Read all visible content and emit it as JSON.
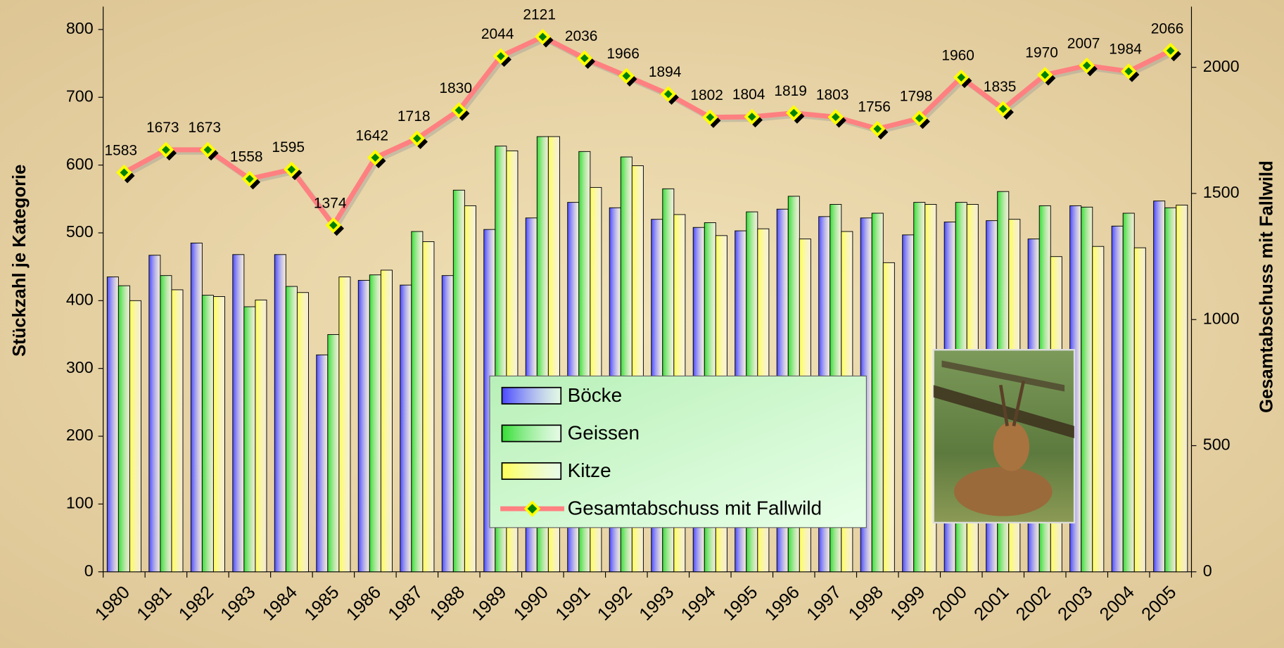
{
  "chart_data": {
    "type": "bar",
    "categories": [
      "1980",
      "1981",
      "1982",
      "1983",
      "1984",
      "1985",
      "1986",
      "1987",
      "1988",
      "1989",
      "1990",
      "1991",
      "1992",
      "1993",
      "1994",
      "1995",
      "1996",
      "1997",
      "1998",
      "1999",
      "2000",
      "2001",
      "2002",
      "2003",
      "2004",
      "2005"
    ],
    "y_label": "Stückzahl je Kategorie",
    "y2_label": "Gesamtabschuss mit Fallwild",
    "ylim": [
      0,
      800
    ],
    "yticks": [
      0,
      100,
      200,
      300,
      400,
      500,
      600,
      700,
      800
    ],
    "y2lim": [
      0,
      2150
    ],
    "y2ticks": [
      0,
      500,
      1000,
      1500,
      2000
    ],
    "series": [
      {
        "name": "Böcke",
        "color": "#4848ff",
        "values": [
          435,
          467,
          485,
          468,
          468,
          320,
          430,
          423,
          437,
          505,
          522,
          545,
          537,
          520,
          508,
          503,
          535,
          524,
          522,
          497,
          516,
          518,
          491,
          540,
          510,
          547
        ]
      },
      {
        "name": "Geissen",
        "color": "#33dd33",
        "values": [
          422,
          437,
          408,
          391,
          421,
          350,
          438,
          502,
          563,
          628,
          642,
          620,
          612,
          565,
          515,
          531,
          554,
          542,
          529,
          545,
          545,
          561,
          540,
          538,
          529,
          537
        ]
      },
      {
        "name": "Kitze",
        "color": "#ffff55",
        "values": [
          400,
          416,
          406,
          401,
          412,
          435,
          445,
          487,
          540,
          621,
          642,
          567,
          599,
          527,
          496,
          506,
          491,
          502,
          456,
          542,
          542,
          520,
          465,
          480,
          478,
          541
        ]
      },
      {
        "name": "Gesamtabschuss mit Fallwild",
        "type": "line",
        "axis": "y2",
        "color": "#ff8080",
        "values": [
          1583,
          1673,
          1673,
          1558,
          1595,
          1374,
          1642,
          1718,
          1830,
          2044,
          2121,
          2036,
          1966,
          1894,
          1802,
          1804,
          1819,
          1803,
          1756,
          1798,
          1960,
          1835,
          1970,
          2007,
          1984,
          2066
        ]
      }
    ]
  }
}
